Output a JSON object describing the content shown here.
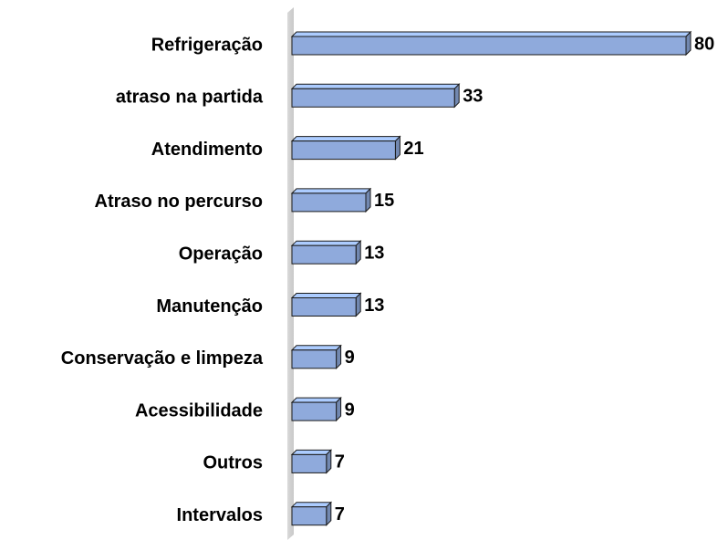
{
  "chart_data": {
    "type": "bar",
    "orientation": "horizontal",
    "categories": [
      "Refrigeração",
      "atraso na partida",
      "Atendimento",
      "Atraso no percurso",
      "Operação",
      "Manutenção",
      "Conservação e limpeza",
      "Acessibilidade",
      "Outros",
      "Intervalos"
    ],
    "values": [
      80,
      33,
      21,
      15,
      13,
      13,
      9,
      9,
      7,
      7
    ],
    "color": "#8faadc"
  }
}
